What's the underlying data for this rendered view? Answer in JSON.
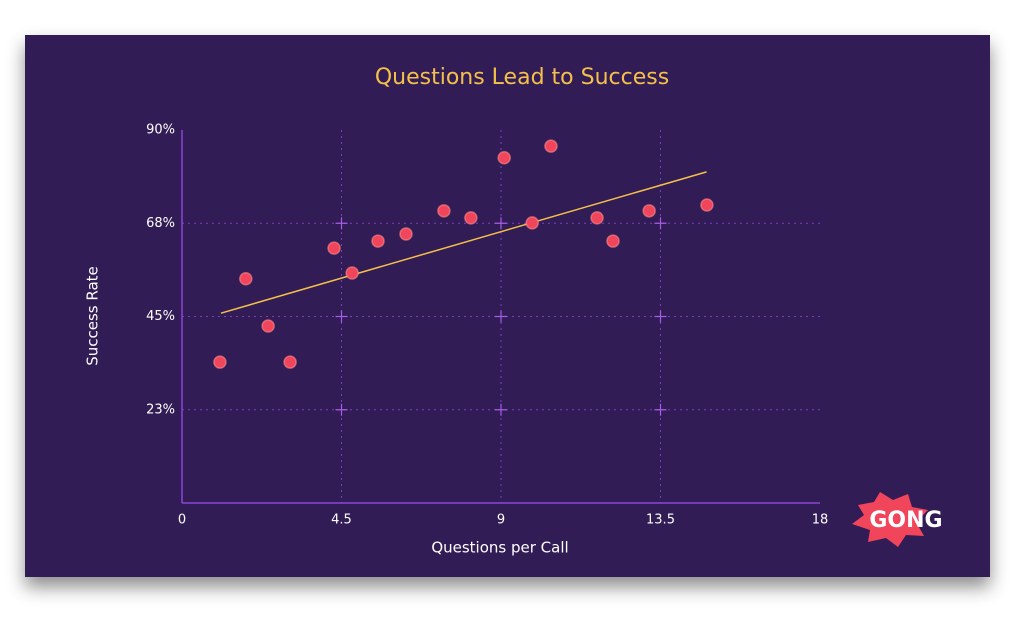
{
  "chart_data": {
    "type": "scatter",
    "title": "Questions Lead to Success",
    "x_label": "Questions per Call",
    "y_label": "Success Rate",
    "x": [
      1.07,
      1.8,
      2.43,
      3.05,
      4.29,
      4.8,
      5.53,
      6.32,
      7.39,
      8.15,
      9.09,
      9.88,
      10.41,
      11.71,
      12.16,
      13.18,
      14.81
    ],
    "values": [
      34.0,
      54.1,
      42.7,
      34.0,
      61.5,
      55.5,
      63.2,
      64.9,
      70.5,
      68.8,
      83.3,
      67.6,
      86.1,
      68.8,
      63.2,
      70.5,
      71.9
    ],
    "color": "#f0455a",
    "trendline": {
      "x": [
        1.1,
        14.8
      ],
      "y": [
        45.8,
        79.9
      ],
      "color": "#f5c04a"
    },
    "xlim": [
      0,
      18
    ],
    "xticks": [
      0,
      4.5,
      9,
      13.5,
      18
    ],
    "ylim": [
      0,
      90
    ],
    "yticks": [
      {
        "value": 22.5,
        "label": "23%"
      },
      {
        "value": 45,
        "label": "45%"
      },
      {
        "value": 67.5,
        "label": "68%"
      },
      {
        "value": 90,
        "label": "90%"
      }
    ],
    "grid": true
  },
  "logo": "GONG"
}
